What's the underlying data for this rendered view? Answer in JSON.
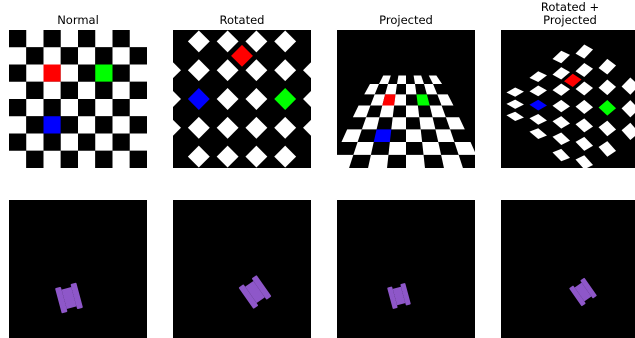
{
  "titles": [
    "Normal",
    "Rotated",
    "Rotated +\nProjected"
  ],
  "title_lines": {
    "normal": "Normal",
    "rotated": "Rotated",
    "projected": "Projected",
    "rotated_projected_1": "Rotated +",
    "rotated_projected_2": "Projected"
  },
  "checkerboard": {
    "grid_size": 8,
    "colors": {
      "light": "#ffffff",
      "dark": "#000000"
    },
    "markers": [
      {
        "name": "red-square",
        "color": "#ff0000",
        "row": 2,
        "col": 2
      },
      {
        "name": "green-square",
        "color": "#00ff00",
        "row": 2,
        "col": 5
      },
      {
        "name": "blue-square",
        "color": "#0000ff",
        "row": 5,
        "col": 2
      }
    ]
  },
  "shape": {
    "name": "i-beam",
    "color": "#8e57c9",
    "background": "#000000"
  },
  "transforms": [
    "normal",
    "rotated",
    "projected",
    "rotated-projected"
  ]
}
